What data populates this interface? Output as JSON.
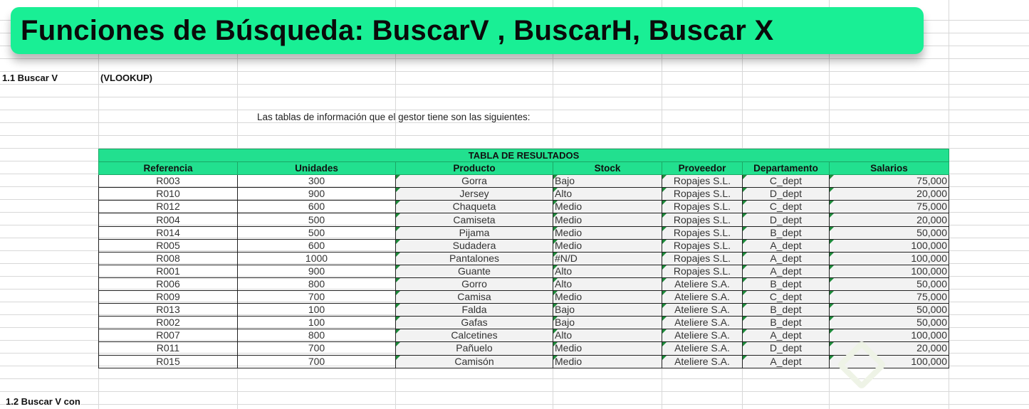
{
  "banner": {
    "title": "Funciones de Búsqueda: BuscarV , BuscarH, Buscar X"
  },
  "section1": {
    "label": "1.1 Buscar V",
    "sub": "(VLOOKUP)"
  },
  "note": "Las tablas de información que el gestor tiene son las siguientes:",
  "table": {
    "title": "TABLA DE RESULTADOS",
    "headers": [
      "Referencia",
      "Unidades",
      "Producto",
      "Stock",
      "Proveedor",
      "Departamento",
      "Salarios"
    ],
    "rows": [
      [
        "R003",
        "300",
        "Gorra",
        "Bajo",
        "Ropajes S.L.",
        "C_dept",
        "75,000"
      ],
      [
        "R010",
        "900",
        "Jersey",
        "Alto",
        "Ropajes S.L.",
        "D_dept",
        "20,000"
      ],
      [
        "R012",
        "600",
        "Chaqueta",
        "Medio",
        "Ropajes S.L.",
        "C_dept",
        "75,000"
      ],
      [
        "R004",
        "500",
        "Camiseta",
        "Medio",
        "Ropajes S.L.",
        "D_dept",
        "20,000"
      ],
      [
        "R014",
        "500",
        "Pijama",
        "Medio",
        "Ropajes S.L.",
        "B_dept",
        "50,000"
      ],
      [
        "R005",
        "600",
        "Sudadera",
        "Medio",
        "Ropajes S.L.",
        "A_dept",
        "100,000"
      ],
      [
        "R008",
        "1000",
        "Pantalones",
        "#N/D",
        "Ropajes S.L.",
        "A_dept",
        "100,000"
      ],
      [
        "R001",
        "900",
        "Guante",
        "Alto",
        "Ropajes S.L.",
        "A_dept",
        "100,000"
      ],
      [
        "R006",
        "800",
        "Gorro",
        "Alto",
        "Ateliere S.A.",
        "B_dept",
        "50,000"
      ],
      [
        "R009",
        "700",
        "Camisa",
        "Medio",
        "Ateliere S.A.",
        "C_dept",
        "75,000"
      ],
      [
        "R013",
        "100",
        "Falda",
        "Bajo",
        "Ateliere S.A.",
        "B_dept",
        "50,000"
      ],
      [
        "R002",
        "100",
        "Gafas",
        "Bajo",
        "Ateliere S.A.",
        "B_dept",
        "50,000"
      ],
      [
        "R007",
        "800",
        "Calcetines",
        "Alto",
        "Ateliere S.A.",
        "A_dept",
        "100,000"
      ],
      [
        "R011",
        "700",
        "Pañuelo",
        "Medio",
        "Ateliere S.A.",
        "D_dept",
        "20,000"
      ],
      [
        "R015",
        "700",
        "Camisón",
        "Medio",
        "Ateliere S.A.",
        "A_dept",
        "100,000"
      ]
    ]
  },
  "section2": {
    "label": "1.2 Buscar V con"
  },
  "watermark": "Platzi",
  "colors": {
    "accent": "#19ef95",
    "header": "#22e08f"
  }
}
